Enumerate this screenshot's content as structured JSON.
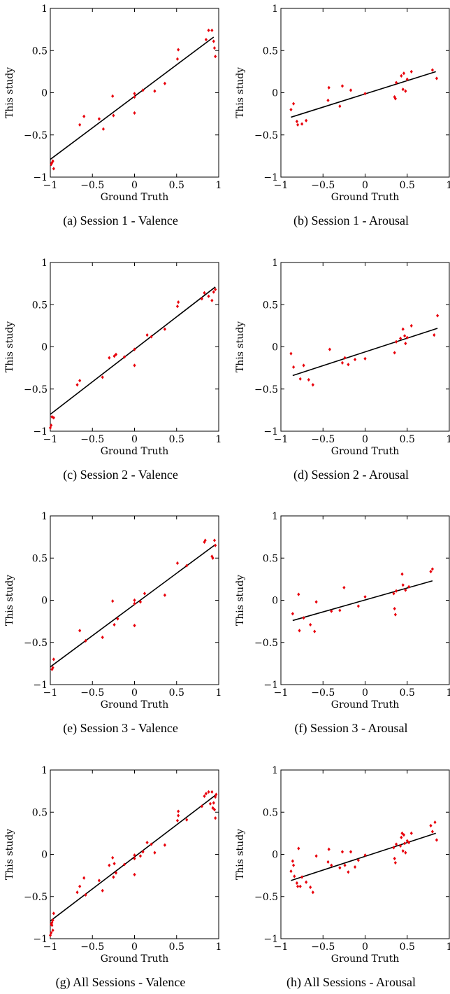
{
  "chart_data": [
    {
      "type": "scatter",
      "caption": "(a) Session 1 - Valence",
      "xlabel": "Ground Truth",
      "ylabel": "This study",
      "xlim": [
        -1,
        1
      ],
      "ylim": [
        -1,
        1
      ],
      "xticks": [
        "−1",
        "−0.5",
        "0",
        "0.5",
        "1"
      ],
      "yticks": [
        "−1",
        "−0.5",
        "0",
        "0.5",
        "1"
      ],
      "grid": false,
      "marker_color": "#e8000b",
      "fit_line": [
        [
          -1,
          -0.79
        ],
        [
          0.94,
          0.66
        ]
      ],
      "points": [
        [
          -0.98,
          -0.83
        ],
        [
          -0.97,
          -0.81
        ],
        [
          -0.96,
          -0.9
        ],
        [
          -0.99,
          -0.85
        ],
        [
          -0.65,
          -0.38
        ],
        [
          -0.6,
          -0.28
        ],
        [
          -0.42,
          -0.31
        ],
        [
          -0.37,
          -0.43
        ],
        [
          -0.26,
          -0.04
        ],
        [
          -0.25,
          -0.27
        ],
        [
          0.0,
          -0.01
        ],
        [
          0.0,
          -0.24
        ],
        [
          0.0,
          -0.05
        ],
        [
          0.1,
          0.03
        ],
        [
          0.24,
          0.02
        ],
        [
          0.36,
          0.11
        ],
        [
          0.51,
          0.4
        ],
        [
          0.52,
          0.51
        ],
        [
          0.85,
          0.63
        ],
        [
          0.88,
          0.74
        ],
        [
          0.92,
          0.74
        ],
        [
          0.94,
          0.61
        ],
        [
          0.95,
          0.53
        ],
        [
          0.96,
          0.43
        ]
      ]
    },
    {
      "type": "scatter",
      "caption": "(b) Session 1 - Arousal",
      "xlabel": "Ground Truth",
      "ylabel": "This study",
      "xlim": [
        -1,
        1
      ],
      "ylim": [
        -1,
        1
      ],
      "xticks": [
        "−1",
        "−0.5",
        "0",
        "0.5",
        "1"
      ],
      "yticks": [
        "−1",
        "−0.5",
        "0",
        "0.5",
        "1"
      ],
      "grid": false,
      "marker_color": "#e8000b",
      "fit_line": [
        [
          -0.88,
          -0.29
        ],
        [
          0.84,
          0.25
        ]
      ],
      "points": [
        [
          -0.88,
          -0.2
        ],
        [
          -0.85,
          -0.13
        ],
        [
          -0.81,
          -0.34
        ],
        [
          -0.8,
          -0.38
        ],
        [
          -0.75,
          -0.37
        ],
        [
          -0.7,
          -0.33
        ],
        [
          -0.43,
          0.06
        ],
        [
          -0.44,
          -0.09
        ],
        [
          -0.3,
          -0.16
        ],
        [
          -0.27,
          0.08
        ],
        [
          -0.17,
          0.03
        ],
        [
          0.0,
          -0.01
        ],
        [
          0.35,
          -0.05
        ],
        [
          0.36,
          -0.07
        ],
        [
          0.37,
          0.12
        ],
        [
          0.43,
          0.2
        ],
        [
          0.45,
          0.04
        ],
        [
          0.46,
          0.23
        ],
        [
          0.48,
          0.02
        ],
        [
          0.5,
          0.16
        ],
        [
          0.55,
          0.25
        ],
        [
          0.8,
          0.27
        ],
        [
          0.85,
          0.17
        ]
      ]
    },
    {
      "type": "scatter",
      "caption": "(c) Session 2 - Valence",
      "xlabel": "Ground Truth",
      "ylabel": "This study",
      "xlim": [
        -1,
        1
      ],
      "ylim": [
        -1,
        1
      ],
      "xticks": [
        "−1",
        "−0.5",
        "0",
        "0.5",
        "1"
      ],
      "yticks": [
        "−1",
        "−0.5",
        "0",
        "0.5",
        "1"
      ],
      "grid": false,
      "marker_color": "#e8000b",
      "fit_line": [
        [
          -1,
          -0.8
        ],
        [
          0.96,
          0.71
        ]
      ],
      "points": [
        [
          -0.98,
          -0.83
        ],
        [
          -0.96,
          -0.84
        ],
        [
          -0.99,
          -0.93
        ],
        [
          -1.0,
          -0.96
        ],
        [
          -0.68,
          -0.45
        ],
        [
          -0.65,
          -0.4
        ],
        [
          -0.38,
          -0.36
        ],
        [
          -0.3,
          -0.13
        ],
        [
          -0.24,
          -0.11
        ],
        [
          -0.22,
          -0.09
        ],
        [
          -0.12,
          -0.12
        ],
        [
          0.0,
          -0.03
        ],
        [
          0.0,
          -0.22
        ],
        [
          0.15,
          0.14
        ],
        [
          0.2,
          0.12
        ],
        [
          0.36,
          0.21
        ],
        [
          0.51,
          0.48
        ],
        [
          0.52,
          0.53
        ],
        [
          0.8,
          0.57
        ],
        [
          0.83,
          0.64
        ],
        [
          0.88,
          0.6
        ],
        [
          0.92,
          0.55
        ],
        [
          0.94,
          0.65
        ],
        [
          0.96,
          0.68
        ]
      ]
    },
    {
      "type": "scatter",
      "caption": "(d) Session 2 - Arousal",
      "xlabel": "Ground Truth",
      "ylabel": "This study",
      "xlim": [
        -1,
        1
      ],
      "ylim": [
        -1,
        1
      ],
      "xticks": [
        "−1",
        "−0.5",
        "0",
        "0.5",
        "1"
      ],
      "yticks": [
        "−1",
        "−0.5",
        "0",
        "0.5",
        "1"
      ],
      "grid": false,
      "marker_color": "#e8000b",
      "fit_line": [
        [
          -0.86,
          -0.34
        ],
        [
          0.86,
          0.22
        ]
      ],
      "points": [
        [
          -0.88,
          -0.08
        ],
        [
          -0.85,
          -0.24
        ],
        [
          -0.77,
          -0.38
        ],
        [
          -0.73,
          -0.22
        ],
        [
          -0.67,
          -0.39
        ],
        [
          -0.62,
          -0.45
        ],
        [
          -0.42,
          -0.03
        ],
        [
          -0.27,
          -0.19
        ],
        [
          -0.24,
          -0.13
        ],
        [
          -0.2,
          -0.21
        ],
        [
          -0.12,
          -0.15
        ],
        [
          0.0,
          -0.14
        ],
        [
          0.35,
          -0.07
        ],
        [
          0.37,
          0.06
        ],
        [
          0.42,
          0.1
        ],
        [
          0.45,
          0.21
        ],
        [
          0.47,
          0.13
        ],
        [
          0.48,
          0.04
        ],
        [
          0.5,
          0.11
        ],
        [
          0.55,
          0.25
        ],
        [
          0.82,
          0.14
        ],
        [
          0.86,
          0.37
        ]
      ]
    },
    {
      "type": "scatter",
      "caption": "(e) Session 3 - Valence",
      "xlabel": "Ground Truth",
      "ylabel": "This study",
      "xlim": [
        -1,
        1
      ],
      "ylim": [
        -1,
        1
      ],
      "xticks": [
        "−1",
        "−0.5",
        "0",
        "0.5",
        "1"
      ],
      "yticks": [
        "−1",
        "−0.5",
        "0",
        "0.5",
        "1"
      ],
      "grid": false,
      "marker_color": "#e8000b",
      "fit_line": [
        [
          -1,
          -0.79
        ],
        [
          0.96,
          0.66
        ]
      ],
      "points": [
        [
          -0.98,
          -0.82
        ],
        [
          -0.97,
          -0.8
        ],
        [
          -0.96,
          -0.7
        ],
        [
          -0.65,
          -0.36
        ],
        [
          -0.58,
          -0.48
        ],
        [
          -0.38,
          -0.44
        ],
        [
          -0.26,
          -0.01
        ],
        [
          -0.24,
          -0.29
        ],
        [
          -0.2,
          -0.22
        ],
        [
          0.0,
          0.0
        ],
        [
          0.0,
          -0.3
        ],
        [
          0.0,
          -0.04
        ],
        [
          0.07,
          -0.02
        ],
        [
          0.12,
          0.08
        ],
        [
          0.36,
          0.06
        ],
        [
          0.51,
          0.44
        ],
        [
          0.62,
          0.41
        ],
        [
          0.83,
          0.69
        ],
        [
          0.84,
          0.71
        ],
        [
          0.92,
          0.52
        ],
        [
          0.93,
          0.5
        ],
        [
          0.95,
          0.71
        ],
        [
          0.96,
          0.65
        ]
      ]
    },
    {
      "type": "scatter",
      "caption": "(f) Session 3 - Arousal",
      "xlabel": "Ground Truth",
      "ylabel": "This study",
      "xlim": [
        -1,
        1
      ],
      "ylim": [
        -1,
        1
      ],
      "xticks": [
        "−1",
        "−0.5",
        "0",
        "0.5",
        "1"
      ],
      "yticks": [
        "−1",
        "−0.5",
        "0",
        "0.5",
        "1"
      ],
      "grid": false,
      "marker_color": "#e8000b",
      "fit_line": [
        [
          -0.86,
          -0.24
        ],
        [
          0.8,
          0.23
        ]
      ],
      "points": [
        [
          -0.86,
          -0.16
        ],
        [
          -0.79,
          0.07
        ],
        [
          -0.78,
          -0.36
        ],
        [
          -0.73,
          -0.21
        ],
        [
          -0.65,
          -0.29
        ],
        [
          -0.6,
          -0.37
        ],
        [
          -0.58,
          -0.02
        ],
        [
          -0.4,
          -0.13
        ],
        [
          -0.3,
          -0.12
        ],
        [
          -0.25,
          0.15
        ],
        [
          -0.08,
          -0.07
        ],
        [
          0.0,
          0.04
        ],
        [
          0.34,
          0.08
        ],
        [
          0.35,
          -0.1
        ],
        [
          0.36,
          -0.17
        ],
        [
          0.37,
          0.11
        ],
        [
          0.44,
          0.31
        ],
        [
          0.45,
          0.18
        ],
        [
          0.48,
          0.12
        ],
        [
          0.52,
          0.16
        ],
        [
          0.78,
          0.34
        ],
        [
          0.8,
          0.37
        ]
      ]
    },
    {
      "type": "scatter",
      "caption": "(g) All Sessions - Valence",
      "xlabel": "Ground Truth",
      "ylabel": "This study",
      "xlim": [
        -1,
        1
      ],
      "ylim": [
        -1,
        1
      ],
      "xticks": [
        "−1",
        "−0.5",
        "0",
        "0.5",
        "1"
      ],
      "yticks": [
        "−1",
        "−0.5",
        "0",
        "0.5",
        "1"
      ],
      "grid": false,
      "marker_color": "#e8000b",
      "fit_line": [
        [
          -1,
          -0.79
        ],
        [
          0.96,
          0.7
        ]
      ],
      "points": [
        [
          -0.99,
          -0.83
        ],
        [
          -0.98,
          -0.81
        ],
        [
          -0.97,
          -0.9
        ],
        [
          -1.0,
          -0.96
        ],
        [
          -0.98,
          -0.84
        ],
        [
          -0.96,
          -0.7
        ],
        [
          -0.99,
          -0.93
        ],
        [
          -0.97,
          -0.78
        ],
        [
          -0.68,
          -0.45
        ],
        [
          -0.65,
          -0.38
        ],
        [
          -0.6,
          -0.28
        ],
        [
          -0.58,
          -0.48
        ],
        [
          -0.42,
          -0.31
        ],
        [
          -0.38,
          -0.43
        ],
        [
          -0.3,
          -0.13
        ],
        [
          -0.26,
          -0.04
        ],
        [
          -0.25,
          -0.27
        ],
        [
          -0.24,
          -0.11
        ],
        [
          -0.22,
          -0.22
        ],
        [
          -0.12,
          -0.12
        ],
        [
          0.0,
          -0.01
        ],
        [
          0.0,
          -0.24
        ],
        [
          0.0,
          -0.05
        ],
        [
          0.07,
          -0.02
        ],
        [
          0.1,
          0.03
        ],
        [
          0.15,
          0.14
        ],
        [
          0.2,
          0.12
        ],
        [
          0.24,
          0.02
        ],
        [
          0.36,
          0.11
        ],
        [
          0.51,
          0.4
        ],
        [
          0.52,
          0.51
        ],
        [
          0.52,
          0.46
        ],
        [
          0.62,
          0.41
        ],
        [
          0.8,
          0.57
        ],
        [
          0.83,
          0.69
        ],
        [
          0.85,
          0.72
        ],
        [
          0.88,
          0.74
        ],
        [
          0.92,
          0.74
        ],
        [
          0.9,
          0.6
        ],
        [
          0.93,
          0.55
        ],
        [
          0.94,
          0.61
        ],
        [
          0.95,
          0.53
        ],
        [
          0.96,
          0.68
        ],
        [
          0.96,
          0.43
        ],
        [
          0.97,
          0.71
        ]
      ]
    },
    {
      "type": "scatter",
      "caption": "(h) All Sessions - Arousal",
      "xlabel": "Ground Truth",
      "ylabel": "This study",
      "xlim": [
        -1,
        1
      ],
      "ylim": [
        -1,
        1
      ],
      "xticks": [
        "−1",
        "−0.5",
        "0",
        "0.5",
        "1"
      ],
      "yticks": [
        "−1",
        "−0.5",
        "0",
        "0.5",
        "1"
      ],
      "grid": false,
      "marker_color": "#e8000b",
      "fit_line": [
        [
          -0.88,
          -0.31
        ],
        [
          0.84,
          0.25
        ]
      ],
      "points": [
        [
          -0.88,
          -0.2
        ],
        [
          -0.86,
          -0.08
        ],
        [
          -0.85,
          -0.13
        ],
        [
          -0.84,
          -0.26
        ],
        [
          -0.81,
          -0.34
        ],
        [
          -0.8,
          -0.38
        ],
        [
          -0.79,
          0.07
        ],
        [
          -0.77,
          -0.38
        ],
        [
          -0.75,
          -0.27
        ],
        [
          -0.7,
          -0.33
        ],
        [
          -0.65,
          -0.39
        ],
        [
          -0.62,
          -0.45
        ],
        [
          -0.58,
          -0.02
        ],
        [
          -0.44,
          -0.09
        ],
        [
          -0.43,
          0.06
        ],
        [
          -0.4,
          -0.13
        ],
        [
          -0.3,
          -0.16
        ],
        [
          -0.27,
          0.03
        ],
        [
          -0.24,
          -0.13
        ],
        [
          -0.2,
          -0.21
        ],
        [
          -0.17,
          0.03
        ],
        [
          -0.12,
          -0.15
        ],
        [
          -0.08,
          -0.07
        ],
        [
          0.0,
          -0.01
        ],
        [
          0.34,
          0.08
        ],
        [
          0.35,
          -0.05
        ],
        [
          0.36,
          -0.1
        ],
        [
          0.37,
          0.12
        ],
        [
          0.42,
          0.1
        ],
        [
          0.43,
          0.2
        ],
        [
          0.44,
          0.25
        ],
        [
          0.45,
          0.04
        ],
        [
          0.46,
          0.23
        ],
        [
          0.47,
          0.13
        ],
        [
          0.48,
          0.02
        ],
        [
          0.5,
          0.16
        ],
        [
          0.52,
          0.14
        ],
        [
          0.55,
          0.25
        ],
        [
          0.78,
          0.34
        ],
        [
          0.8,
          0.27
        ],
        [
          0.83,
          0.38
        ],
        [
          0.85,
          0.17
        ]
      ]
    }
  ]
}
